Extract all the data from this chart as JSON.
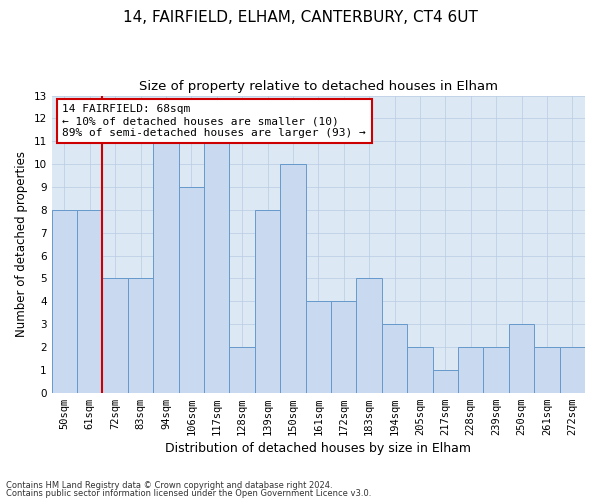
{
  "title1": "14, FAIRFIELD, ELHAM, CANTERBURY, CT4 6UT",
  "title2": "Size of property relative to detached houses in Elham",
  "xlabel": "Distribution of detached houses by size in Elham",
  "ylabel": "Number of detached properties",
  "footnote1": "Contains HM Land Registry data © Crown copyright and database right 2024.",
  "footnote2": "Contains public sector information licensed under the Open Government Licence v3.0.",
  "categories": [
    "50sqm",
    "61sqm",
    "72sqm",
    "83sqm",
    "94sqm",
    "106sqm",
    "117sqm",
    "128sqm",
    "139sqm",
    "150sqm",
    "161sqm",
    "172sqm",
    "183sqm",
    "194sqm",
    "205sqm",
    "217sqm",
    "228sqm",
    "239sqm",
    "250sqm",
    "261sqm",
    "272sqm"
  ],
  "values": [
    8,
    8,
    5,
    5,
    11,
    9,
    11,
    2,
    8,
    10,
    4,
    4,
    5,
    3,
    2,
    1,
    2,
    2,
    3,
    2,
    2
  ],
  "bar_color": "#c9d9f0",
  "bar_edge_color": "#6699cc",
  "annotation_line1": "14 FAIRFIELD: 68sqm",
  "annotation_line2": "← 10% of detached houses are smaller (10)",
  "annotation_line3": "89% of semi-detached houses are larger (93) →",
  "annotation_box_facecolor": "#ffffff",
  "annotation_box_edgecolor": "#cc0000",
  "red_line_x": 1.5,
  "ylim": [
    0,
    13
  ],
  "yticks": [
    0,
    1,
    2,
    3,
    4,
    5,
    6,
    7,
    8,
    9,
    10,
    11,
    12,
    13
  ],
  "plot_bg_color": "#dde8f5",
  "background_color": "#ffffff",
  "grid_color": "#b8cce4",
  "title1_fontsize": 11,
  "title2_fontsize": 9.5,
  "xlabel_fontsize": 9,
  "ylabel_fontsize": 8.5,
  "tick_fontsize": 7.5,
  "annot_fontsize": 8
}
